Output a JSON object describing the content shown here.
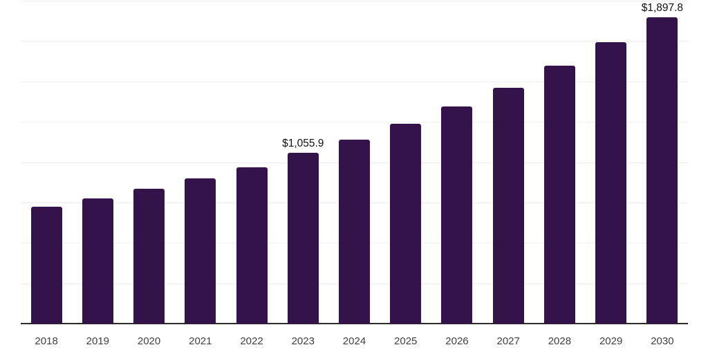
{
  "chart_data": {
    "type": "bar",
    "title": "",
    "xlabel": "",
    "ylabel": "",
    "categories": [
      "2018",
      "2019",
      "2020",
      "2021",
      "2022",
      "2023",
      "2024",
      "2025",
      "2026",
      "2027",
      "2028",
      "2029",
      "2030"
    ],
    "values": [
      724,
      776,
      836,
      900,
      970,
      1055.9,
      1140,
      1238,
      1344,
      1462,
      1596,
      1743,
      1897.8
    ],
    "data_labels": {
      "2023": "$1,055.9",
      "2030": "$1,897.8"
    },
    "ylim": [
      0,
      2000
    ],
    "gridline_step": 250,
    "grid": true,
    "legend": false,
    "y_axis_labels_visible": false,
    "bar_color": "#331349",
    "axis_line_color": "#2b2b2b",
    "gridline_color": "#efefef",
    "tick_label_color": "#404040",
    "data_label_color": "#111111",
    "background_color": "#ffffff"
  }
}
